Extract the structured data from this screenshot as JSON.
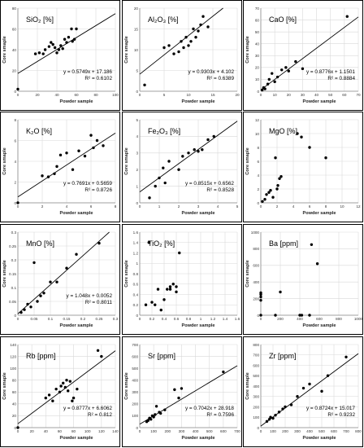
{
  "charts": [
    {
      "type": "scatter",
      "title": "SiO₂ [%]",
      "xlabel": "Powder sample",
      "ylabel": "Core smaple",
      "xlim": [
        0,
        100
      ],
      "ylim": [
        0,
        80
      ],
      "xticks": [
        0,
        20,
        40,
        60,
        80,
        100
      ],
      "yticks": [
        0,
        20,
        40,
        60,
        80
      ],
      "equation": "y = 0.5749x + 17.186",
      "r2": "R² = 0.6102",
      "trendline": {
        "slope": 0.5749,
        "intercept": 17.186
      },
      "x": [
        0,
        18,
        22,
        26,
        28,
        32,
        34,
        36,
        38,
        40,
        42,
        44,
        46,
        48,
        50,
        52,
        55,
        56,
        58,
        60
      ],
      "y": [
        2,
        36,
        37,
        36,
        40,
        43,
        47,
        45,
        42,
        37,
        40,
        44,
        41,
        50,
        47,
        52,
        60,
        48,
        50,
        60
      ]
    },
    {
      "type": "scatter",
      "title": "Al₂O₃ [%]",
      "xlabel": "Powder sample",
      "ylabel": "Core smaple",
      "xlim": [
        0,
        20
      ],
      "ylim": [
        0,
        20
      ],
      "xticks": [
        0,
        5,
        10,
        15,
        20
      ],
      "yticks": [
        0,
        5,
        10,
        15,
        20
      ],
      "equation": "y = 0.9303x + 4.102",
      "r2": "R² = 0.6389",
      "trendline": {
        "slope": 0.9303,
        "intercept": 4.102
      },
      "x": [
        1,
        5,
        6,
        7,
        8,
        8.5,
        9,
        9.5,
        10,
        10.5,
        11,
        11.5,
        12,
        12.5,
        13,
        14
      ],
      "y": [
        1.5,
        10.5,
        11,
        9,
        9.5,
        12,
        10.5,
        13,
        11,
        12,
        15,
        13,
        14.5,
        16,
        18,
        15.5
      ]
    },
    {
      "type": "scatter",
      "title": "CaO [%]",
      "xlabel": "Powder sample",
      "ylabel": "Core smaple",
      "xlim": [
        0,
        70
      ],
      "ylim": [
        0,
        70
      ],
      "xticks": [
        0,
        10,
        20,
        30,
        40,
        50,
        60,
        70
      ],
      "yticks": [
        0,
        10,
        20,
        30,
        40,
        50,
        60,
        70
      ],
      "equation": "y = 0.8776x + 1.1501",
      "r2": "R² = 0.8884",
      "trendline": {
        "slope": 0.8776,
        "intercept": 1.1501
      },
      "x": [
        1,
        2,
        3,
        5,
        6,
        8,
        10,
        12,
        15,
        18,
        20,
        25,
        30,
        62
      ],
      "y": [
        1,
        3,
        2,
        6,
        10,
        15,
        8,
        12,
        18,
        20,
        17,
        25,
        19,
        63
      ]
    },
    {
      "type": "scatter",
      "title": "K₂O [%]",
      "xlabel": "Powder sample",
      "ylabel": "Core smaple",
      "xlim": [
        0,
        8
      ],
      "ylim": [
        0,
        8
      ],
      "xticks": [
        0,
        2,
        4,
        6,
        8
      ],
      "yticks": [
        0,
        2,
        4,
        6,
        8
      ],
      "equation": "y = 0.7691x + 0.5659",
      "r2": "R² = 0.8726",
      "trendline": {
        "slope": 0.7691,
        "intercept": 0.5659
      },
      "x": [
        0,
        2,
        2.5,
        3,
        3.2,
        3.5,
        4,
        4.5,
        5,
        5.5,
        6,
        6.2,
        6.5,
        7
      ],
      "y": [
        0,
        2.6,
        2.5,
        2.8,
        3.5,
        4.6,
        4.8,
        3.2,
        5,
        4.5,
        6.5,
        5.3,
        6,
        5.5
      ]
    },
    {
      "type": "scatter",
      "title": "Fe₂O₃ [%]",
      "xlabel": "Powder sample",
      "ylabel": "Core smaple",
      "xlim": [
        0,
        5
      ],
      "ylim": [
        0,
        5
      ],
      "xticks": [
        0,
        1,
        2,
        3,
        4,
        5
      ],
      "yticks": [
        0,
        1,
        2,
        3,
        4,
        5
      ],
      "equation": "y = 0.8515x + 0.6562",
      "r2": "R² = 0.8528",
      "trendline": {
        "slope": 0.8515,
        "intercept": 0.6562
      },
      "x": [
        0.5,
        0.8,
        1.0,
        1.2,
        1.3,
        1.5,
        2.0,
        2.2,
        2.5,
        2.8,
        3.0,
        3.2,
        3.5,
        3.8
      ],
      "y": [
        0.3,
        1.0,
        1.5,
        2.1,
        1.2,
        2.5,
        2.0,
        2.8,
        3.0,
        3.2,
        3.1,
        3.2,
        3.8,
        4.0
      ]
    },
    {
      "type": "scatter",
      "title": "MgO [%]",
      "xlabel": "Powder sample",
      "ylabel": "Core smaple",
      "xlim": [
        0,
        12
      ],
      "ylim": [
        0,
        12
      ],
      "xticks": [
        0,
        2,
        4,
        6,
        8,
        10,
        12
      ],
      "yticks": [
        0,
        2,
        4,
        6,
        8,
        10,
        12
      ],
      "x": [
        0.2,
        0.5,
        0.7,
        1,
        1.2,
        1.5,
        1.8,
        2.0,
        2.1,
        2.3,
        2.5,
        4.5,
        5,
        6,
        8
      ],
      "y": [
        0.2,
        0.5,
        1.2,
        1.5,
        1.8,
        0.8,
        6.5,
        2.0,
        2.5,
        3.5,
        3.8,
        10,
        9.5,
        8,
        6.5
      ]
    },
    {
      "type": "scatter",
      "title": "MnO [%]",
      "xlabel": "Powder sample",
      "ylabel": "Core smaple",
      "xlim": [
        0,
        0.3
      ],
      "ylim": [
        0,
        0.3
      ],
      "xticks": [
        0,
        0.05,
        0.1,
        0.15,
        0.2,
        0.25,
        0.3
      ],
      "yticks": [
        0,
        0.05,
        0.1,
        0.15,
        0.2,
        0.25,
        0.3
      ],
      "equation": "y = 1.048x + 0.0052",
      "r2": "R² = 0.8011",
      "trendline": {
        "slope": 1.048,
        "intercept": 0.0052
      },
      "x": [
        0.01,
        0.02,
        0.03,
        0.04,
        0.05,
        0.06,
        0.07,
        0.08,
        0.1,
        0.12,
        0.15,
        0.18,
        0.25
      ],
      "y": [
        0.01,
        0.02,
        0.04,
        0.03,
        0.19,
        0.05,
        0.07,
        0.08,
        0.12,
        0.12,
        0.17,
        0.22,
        0.26
      ]
    },
    {
      "type": "scatter",
      "title": "TiO₂ [%]",
      "xlabel": "Powder sample",
      "ylabel": "Core smaple",
      "xlim": [
        0,
        1.6
      ],
      "ylim": [
        0,
        1.6
      ],
      "xticks": [
        0,
        0.2,
        0.4,
        0.6,
        0.8,
        1.0,
        1.2,
        1.4,
        1.6
      ],
      "yticks": [
        0,
        0.2,
        0.4,
        0.6,
        0.8,
        1.0,
        1.2,
        1.4,
        1.6
      ],
      "x": [
        0.1,
        0.15,
        0.2,
        0.25,
        0.3,
        0.35,
        0.4,
        0.45,
        0.5,
        0.5,
        0.55,
        0.6,
        0.6,
        0.65
      ],
      "y": [
        0.2,
        1.4,
        0.25,
        0.2,
        0.5,
        0.1,
        0.3,
        0.5,
        0.5,
        0.55,
        0.6,
        0.45,
        0.55,
        1.2
      ]
    },
    {
      "type": "scatter",
      "title": "Ba [ppm]",
      "xlabel": "Powder sample",
      "ylabel": "Core smaple",
      "xlim": [
        0,
        1000
      ],
      "ylim": [
        0,
        1000
      ],
      "xticks": [
        0,
        200,
        400,
        600,
        800,
        1000
      ],
      "yticks": [
        0,
        200,
        400,
        600,
        800,
        1000
      ],
      "x": [
        0,
        0,
        0,
        0,
        0,
        150,
        200,
        400,
        420,
        500,
        520,
        580
      ],
      "y": [
        180,
        220,
        250,
        270,
        0,
        0,
        280,
        0,
        0,
        0,
        850,
        620
      ]
    },
    {
      "type": "scatter",
      "title": "Rb [ppm]",
      "xlabel": "Powder sample",
      "ylabel": "Core smaple",
      "xlim": [
        0,
        140
      ],
      "ylim": [
        0,
        140
      ],
      "xticks": [
        0,
        20,
        40,
        60,
        80,
        100,
        120,
        140
      ],
      "yticks": [
        0,
        20,
        40,
        60,
        80,
        100,
        120,
        140
      ],
      "equation": "y = 0.8777x + 6.6062",
      "r2": "R² = 0.812",
      "trendline": {
        "slope": 0.8777,
        "intercept": 6.6062
      },
      "x": [
        0,
        40,
        45,
        50,
        55,
        60,
        62,
        65,
        68,
        70,
        72,
        75,
        78,
        80,
        85,
        115,
        120
      ],
      "y": [
        0,
        50,
        55,
        45,
        65,
        60,
        70,
        75,
        68,
        80,
        62,
        78,
        45,
        50,
        65,
        130,
        120
      ]
    },
    {
      "type": "scatter",
      "title": "Sr [ppm]",
      "xlabel": "Powder sample",
      "ylabel": "Core smaple",
      "xlim": [
        0,
        700
      ],
      "ylim": [
        0,
        700
      ],
      "xticks": [
        0,
        100,
        200,
        300,
        400,
        500,
        600,
        700
      ],
      "yticks": [
        0,
        100,
        200,
        300,
        400,
        500,
        600,
        700
      ],
      "equation": "y = 0.7042x + 28.918",
      "r2": "R² = 0.7596",
      "trendline": {
        "slope": 0.7042,
        "intercept": 28.918
      },
      "x": [
        50,
        60,
        70,
        80,
        90,
        100,
        110,
        120,
        140,
        150,
        180,
        250,
        280,
        300,
        600
      ],
      "y": [
        50,
        60,
        80,
        70,
        100,
        90,
        110,
        180,
        130,
        120,
        150,
        320,
        250,
        330,
        470
      ]
    },
    {
      "type": "scatter",
      "title": "Zr [ppm]",
      "xlabel": "Powder sample",
      "ylabel": "Core smaple",
      "xlim": [
        0,
        800
      ],
      "ylim": [
        0,
        800
      ],
      "xticks": [
        0,
        100,
        200,
        300,
        400,
        500,
        600,
        700,
        800
      ],
      "yticks": [
        0,
        100,
        200,
        300,
        400,
        500,
        600,
        700,
        800
      ],
      "equation": "y = 0.8724x + 15.017",
      "r2": "R² = 0.9232",
      "trendline": {
        "slope": 0.8724,
        "intercept": 15.017
      },
      "x": [
        50,
        70,
        80,
        100,
        120,
        150,
        180,
        200,
        250,
        300,
        350,
        400,
        500,
        550,
        700
      ],
      "y": [
        60,
        80,
        100,
        90,
        120,
        150,
        180,
        200,
        220,
        300,
        380,
        420,
        350,
        500,
        680
      ]
    }
  ]
}
